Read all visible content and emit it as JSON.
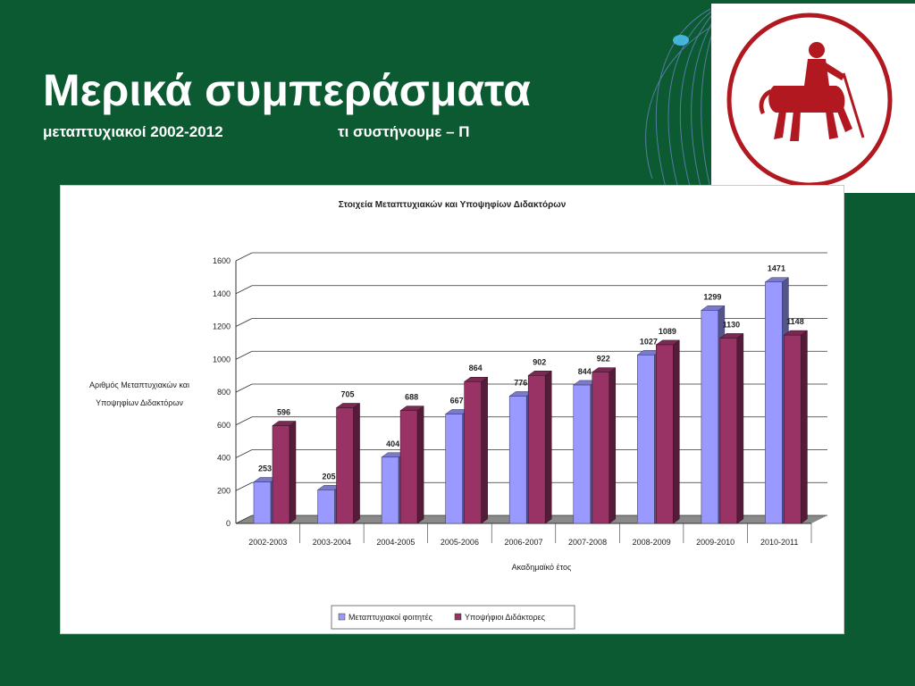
{
  "slide": {
    "title": "Μερικά συμπεράσματα",
    "subtitle_left": "μεταπτυχιακοί 2002-2012",
    "subtitle_right": "τι συστήνουμε – Π"
  },
  "logo": {
    "icon": "centaur-icon",
    "color": "#b2181f"
  },
  "chart_data": {
    "type": "bar",
    "title": "Στοιχεία Μεταπτυχιακών και Υποψηφίων Διδακτόρων",
    "xlabel": "Ακαδημαϊκό έτος",
    "ylabel": [
      "Αριθμός Μεταπτυχιακών και",
      "Υποψηφίων Διδακτόρων"
    ],
    "ylim": [
      0,
      1600
    ],
    "yticks": [
      0,
      200,
      400,
      600,
      800,
      1000,
      1200,
      1400,
      1600
    ],
    "grid": true,
    "legend_position": "bottom",
    "categories": [
      "2002-2003",
      "2003-2004",
      "2004-2005",
      "2005-2006",
      "2006-2007",
      "2007-2008",
      "2008-2009",
      "2009-2010",
      "2010-2011"
    ],
    "series": [
      {
        "name": "Μεταπτυχιακοί φοιτητές",
        "color": "#9999ff",
        "values": [
          253,
          205,
          404,
          667,
          776,
          844,
          1027,
          1299,
          1471
        ]
      },
      {
        "name": "Υποψήφιοι Διδάκτορες",
        "color": "#993366",
        "values": [
          596,
          705,
          688,
          864,
          902,
          922,
          1089,
          1130,
          1148
        ]
      }
    ]
  }
}
